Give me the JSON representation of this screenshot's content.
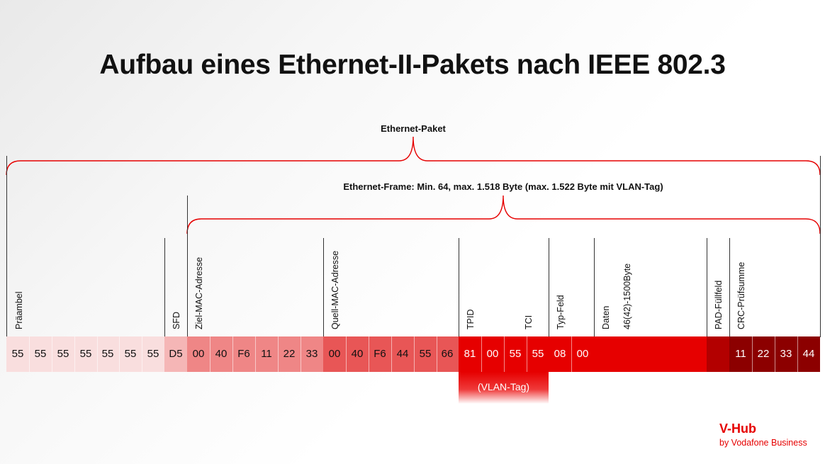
{
  "title": "Aufbau eines Ethernet-II-Pakets nach IEEE 802.3",
  "brace_labels": {
    "packet": "Ethernet-Paket",
    "frame": "Ethernet-Frame: Min. 64, max. 1.518 Byte (max. 1.522 Byte mit VLAN-Tag)"
  },
  "fields": {
    "preamble": "Präambel",
    "sfd": "SFD",
    "dest_mac": "Ziel-MAC-Adresse",
    "src_mac": "Quell-MAC-Adresse",
    "tpid": "TPID",
    "tci": "TCI",
    "type": "Typ-Feld",
    "data": "Daten",
    "data_size": "46(42)-1500Byte",
    "pad": "PAD-Füllfeld",
    "crc": "CRC-Prüfsumme"
  },
  "bytes": {
    "preamble": [
      "55",
      "55",
      "55",
      "55",
      "55",
      "55",
      "55"
    ],
    "sfd": [
      "D5"
    ],
    "dest_mac": [
      "00",
      "40",
      "F6",
      "11",
      "22",
      "33"
    ],
    "src_mac": [
      "00",
      "40",
      "F6",
      "44",
      "55",
      "66"
    ],
    "vlan": [
      "81",
      "00",
      "55",
      "55"
    ],
    "type": [
      "08",
      "00"
    ],
    "crc": [
      "11",
      "22",
      "33",
      "44"
    ]
  },
  "vlan_label": "(VLAN-Tag)",
  "colors": {
    "preamble": "#f9dede",
    "sfd": "#f5b6b6",
    "dest_mac": "#ef8686",
    "src_mac": "#e85656",
    "vlan": "#e60000",
    "type": "#e60000",
    "data": "#e60000",
    "pad": "#b30000",
    "crc": "#8c0000",
    "brace": "#e60000"
  },
  "logo": {
    "name": "V-Hub",
    "tagline": "by Vodafone Business"
  }
}
